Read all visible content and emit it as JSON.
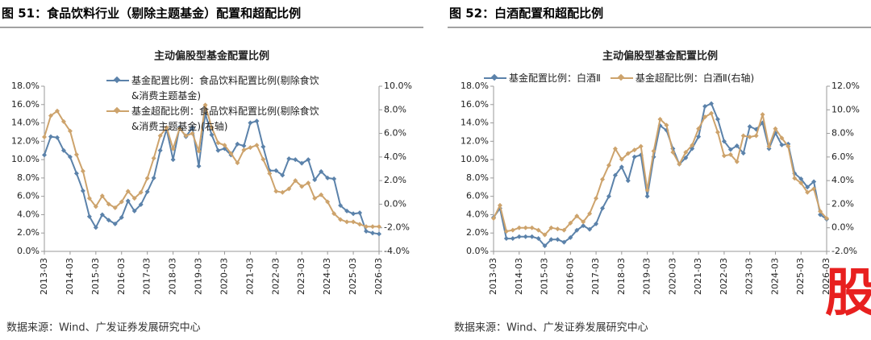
{
  "chart_data": [
    {
      "type": "line",
      "figure_title": "图 51：食品饮料行业（剔除主题基金）配置和超配比例",
      "title": "主动偏股型基金配置比例",
      "source": "数据来源：Wind、广发证券发展研究中心",
      "categories": [
        "2013-03",
        null,
        null,
        null,
        "2014-03",
        null,
        null,
        null,
        "2015-03",
        null,
        null,
        null,
        "2016-03",
        null,
        null,
        null,
        "2017-03",
        null,
        null,
        null,
        "2018-03",
        null,
        null,
        null,
        "2019-03",
        null,
        null,
        null,
        "2020-03",
        null,
        null,
        null,
        "2021-03",
        null,
        null,
        null,
        "2022-03",
        null,
        null,
        null,
        "2023-03",
        null,
        null,
        null,
        "2024-03",
        null,
        null,
        null,
        "2025-03",
        null,
        null,
        null,
        "2026-03"
      ],
      "series": [
        {
          "name": "基金配置比例：食品饮料配置比例(剔除食饮&消费主题基金)",
          "color": "#5b82aa",
          "axis": "y",
          "values": [
            10.5,
            12.5,
            12.4,
            11.0,
            10.3,
            8.5,
            6.6,
            3.8,
            2.6,
            4.0,
            3.4,
            3.0,
            3.7,
            5.5,
            4.4,
            5.1,
            6.5,
            8.0,
            11.0,
            13.3,
            10.0,
            13.5,
            12.5,
            13.5,
            9.3,
            15.0,
            12.7,
            11.0,
            11.2,
            10.5,
            11.7,
            11.5,
            14.0,
            14.2,
            11.4,
            8.8,
            8.8,
            8.3,
            10.1,
            10.0,
            9.6,
            10.0,
            7.8,
            8.7,
            8.0,
            7.9,
            5.0,
            4.4,
            4.1,
            4.2,
            2.2,
            2.0,
            1.9
          ]
        },
        {
          "name": "基金超配比例：食品饮料配置比例(剔除食饮&消费主题基金)(右轴)",
          "color": "#cda36c",
          "axis": "y2",
          "values": [
            5.7,
            7.5,
            7.9,
            7.0,
            6.2,
            4.2,
            2.8,
            0.5,
            -0.2,
            0.7,
            0.0,
            -0.3,
            0.2,
            1.1,
            0.5,
            1.0,
            2.2,
            3.9,
            5.8,
            6.5,
            4.7,
            6.4,
            5.8,
            6.0,
            4.5,
            8.4,
            6.5,
            5.2,
            5.0,
            4.3,
            3.5,
            4.6,
            4.8,
            5.0,
            3.8,
            2.6,
            1.1,
            1.0,
            1.3,
            2.0,
            1.5,
            1.8,
            0.5,
            0.8,
            0.2,
            -0.8,
            -1.3,
            -1.5,
            -1.5,
            -1.7,
            -1.9,
            -1.9,
            -1.9
          ]
        }
      ],
      "ylim": [
        0,
        18
      ],
      "yticks": [
        {
          "value": 0,
          "label": "0.0%"
        },
        {
          "value": 2,
          "label": "2.0%"
        },
        {
          "value": 4,
          "label": "4.0%"
        },
        {
          "value": 6,
          "label": "6.0%"
        },
        {
          "value": 8,
          "label": "8.0%"
        },
        {
          "value": 10,
          "label": "10.0%"
        },
        {
          "value": 12,
          "label": "12.0%"
        },
        {
          "value": 14,
          "label": "14.0%"
        },
        {
          "value": 16,
          "label": "16.0%"
        },
        {
          "value": 18,
          "label": "18.0%"
        }
      ],
      "y2lim": [
        -4,
        10
      ],
      "y2ticks": [
        {
          "value": -4,
          "label": "-4.0%"
        },
        {
          "value": -2,
          "label": "-2.0%"
        },
        {
          "value": 0,
          "label": "0.0%"
        },
        {
          "value": 2,
          "label": "2.0%"
        },
        {
          "value": 4,
          "label": "4.0%"
        },
        {
          "value": 6,
          "label": "6.0%"
        },
        {
          "value": 8,
          "label": "8.0%"
        },
        {
          "value": 10,
          "label": "10.0%"
        }
      ],
      "legend": "top"
    },
    {
      "type": "line",
      "figure_title": "图 52：白酒配置和超配比例",
      "title": "主动偏股型基金配置比例",
      "source": "数据来源：Wind、广发证券发展研究中心",
      "watermark": "股",
      "categories": [
        "2013-03",
        null,
        null,
        null,
        "2014-03",
        null,
        null,
        null,
        "2015-03",
        null,
        null,
        null,
        "2016-03",
        null,
        null,
        null,
        "2017-03",
        null,
        null,
        null,
        "2018-03",
        null,
        null,
        null,
        "2019-03",
        null,
        null,
        null,
        "2020-03",
        null,
        null,
        null,
        "2021-03",
        null,
        null,
        null,
        "2022-03",
        null,
        null,
        null,
        "2023-03",
        null,
        null,
        null,
        "2024-03",
        null,
        null,
        null,
        "2025-03",
        null,
        null,
        null,
        "2026-03"
      ],
      "series": [
        {
          "name": "基金配置比例：白酒Ⅱ",
          "color": "#5b82aa",
          "axis": "y",
          "values": [
            3.7,
            4.7,
            1.4,
            1.4,
            1.6,
            1.6,
            1.6,
            1.4,
            0.6,
            1.3,
            1.3,
            1.0,
            1.5,
            2.3,
            2.8,
            2.4,
            3.0,
            4.7,
            6.0,
            8.3,
            9.2,
            7.7,
            10.3,
            10.5,
            6.0,
            10.3,
            13.7,
            13.2,
            11.2,
            9.5,
            10.2,
            11.2,
            12.5,
            15.8,
            16.1,
            14.4,
            12.0,
            11.1,
            11.5,
            10.7,
            13.6,
            13.3,
            14.0,
            11.2,
            12.9,
            11.6,
            11.7,
            8.5,
            7.9,
            7.0,
            7.6,
            4.0,
            3.5
          ]
        },
        {
          "name": "基金超配比例：白酒Ⅱ(右轴)",
          "color": "#cda36c",
          "axis": "y2",
          "values": [
            0.8,
            1.9,
            -0.3,
            -0.2,
            0.0,
            0.0,
            0.0,
            -0.2,
            -0.6,
            0.0,
            -0.1,
            -0.2,
            0.4,
            1.0,
            0.5,
            1.2,
            2.5,
            4.1,
            5.3,
            6.7,
            5.8,
            6.3,
            6.6,
            6.9,
            3.2,
            6.5,
            9.2,
            8.7,
            6.4,
            5.4,
            6.4,
            7.0,
            8.4,
            9.4,
            9.7,
            8.1,
            6.1,
            6.2,
            5.6,
            7.8,
            7.7,
            7.8,
            9.6,
            6.9,
            8.4,
            7.6,
            6.9,
            4.2,
            3.8,
            3.0,
            3.3,
            1.4,
            0.8
          ]
        }
      ],
      "ylim": [
        0,
        18
      ],
      "yticks": [
        {
          "value": 0,
          "label": "0.0%"
        },
        {
          "value": 2,
          "label": "2.0%"
        },
        {
          "value": 4,
          "label": "4.0%"
        },
        {
          "value": 6,
          "label": "6.0%"
        },
        {
          "value": 8,
          "label": "8.0%"
        },
        {
          "value": 10,
          "label": "10.0%"
        },
        {
          "value": 12,
          "label": "12.0%"
        },
        {
          "value": 14,
          "label": "14.0%"
        },
        {
          "value": 16,
          "label": "16.0%"
        },
        {
          "value": 18,
          "label": "18.0%"
        }
      ],
      "y2lim": [
        -2,
        12
      ],
      "y2ticks": [
        {
          "value": -2,
          "label": "-2.0%"
        },
        {
          "value": 0,
          "label": "0.0%"
        },
        {
          "value": 2,
          "label": "2.0%"
        },
        {
          "value": 4,
          "label": "4.0%"
        },
        {
          "value": 6,
          "label": "6.0%"
        },
        {
          "value": 8,
          "label": "8.0%"
        },
        {
          "value": 10,
          "label": "10.0%"
        },
        {
          "value": 12,
          "label": "12.0%"
        }
      ],
      "legend": "top"
    }
  ]
}
